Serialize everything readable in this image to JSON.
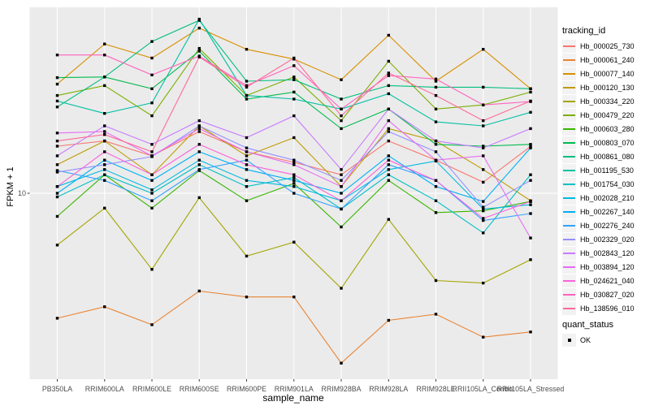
{
  "chart_data": {
    "type": "line",
    "title": "",
    "xlabel": "sample_name",
    "ylabel": "FPKM + 1",
    "y_scale": "log10",
    "y_ticks": [
      "10"
    ],
    "ylim": [
      0.8,
      138
    ],
    "grid": "ggplot-grey-panel-white-gridlines",
    "legend_position": "right",
    "point_style": {
      "shape": "square",
      "color": "#000000"
    },
    "panel_color": "#EBEBEB",
    "gridline_color": "#FFFFFF",
    "categories": [
      "PB350LA",
      "RRIM600LA",
      "RRIM600LE",
      "RRIM600SE",
      "RRIM600PE",
      "RRIM901LA",
      "RRIM928BA",
      "RRIM928LA",
      "RRIM928LE",
      "RRII105LA_Control",
      "RRII105LA_Stressed"
    ],
    "legend": {
      "title": "tracking_id"
    },
    "legend2": {
      "title": "quant_status",
      "items": [
        "OK"
      ]
    },
    "series": [
      {
        "name": "Hb_000025_730",
        "color": "#F8766D",
        "values": [
          19.5,
          21,
          17,
          24,
          18,
          15.5,
          13,
          21,
          16,
          11.7,
          19.4
        ]
      },
      {
        "name": "Hb_000061_240",
        "color": "#EA8331",
        "values": [
          1.7,
          2.0,
          1.55,
          2.5,
          2.3,
          2.3,
          0.9,
          1.65,
          1.8,
          1.3,
          1.4
        ]
      },
      {
        "name": "Hb_000077_140",
        "color": "#D89000",
        "values": [
          47,
          83,
          68,
          104,
          77,
          67,
          50,
          94,
          49,
          77,
          44
        ]
      },
      {
        "name": "Hb_000120_130",
        "color": "#C09B00",
        "values": [
          15,
          21,
          13,
          26,
          17,
          22,
          11,
          25,
          21,
          14,
          9
        ]
      },
      {
        "name": "Hb_000334_220",
        "color": "#A3A500",
        "values": [
          4.8,
          8.1,
          3.4,
          9.4,
          4.1,
          5.0,
          2.6,
          6.9,
          2.9,
          2.8,
          3.9
        ]
      },
      {
        "name": "Hb_000479_220",
        "color": "#7CAE00",
        "values": [
          40,
          46,
          30,
          78,
          40,
          52,
          28,
          65,
          33,
          35,
          42
        ]
      },
      {
        "name": "Hb_000603_280",
        "color": "#39B600",
        "values": [
          7.2,
          13,
          8.1,
          13.8,
          9,
          11.5,
          6.2,
          12,
          7.6,
          7.8,
          8.9
        ]
      },
      {
        "name": "Hb_000803_070",
        "color": "#00BB4E",
        "values": [
          51.5,
          52,
          44,
          75,
          38,
          42,
          25,
          33,
          20,
          19.5,
          20
        ]
      },
      {
        "name": "Hb_000861_080",
        "color": "#00BF7D",
        "values": [
          34,
          52,
          86,
          116,
          49,
          50,
          38,
          46,
          45,
          45,
          44
        ]
      },
      {
        "name": "Hb_001195_530",
        "color": "#00C1A3",
        "values": [
          37,
          31,
          36,
          118,
          40,
          38,
          33,
          41,
          27.5,
          26,
          31.5
        ]
      },
      {
        "name": "Hb_001754_030",
        "color": "#00BFC4",
        "values": [
          9.5,
          13,
          10,
          15,
          11,
          12.5,
          8,
          13,
          9,
          5.7,
          13
        ]
      },
      {
        "name": "Hb_002028_210",
        "color": "#00BAE0",
        "values": [
          11,
          14,
          10.5,
          16,
          12,
          11,
          9,
          14,
          15.8,
          8,
          8.5
        ]
      },
      {
        "name": "Hb_002267_140",
        "color": "#00B0F6",
        "values": [
          10,
          16,
          12,
          18,
          14,
          12,
          10,
          17,
          11,
          8.9,
          19
        ]
      },
      {
        "name": "Hb_002276_240",
        "color": "#35A2FF",
        "values": [
          13.8,
          12,
          9,
          14,
          16,
          10,
          8,
          15,
          12,
          6.8,
          7.5
        ]
      },
      {
        "name": "Hb_002329_020",
        "color": "#9590FF",
        "values": [
          13.5,
          15,
          16.8,
          26,
          19,
          16,
          12,
          24,
          18,
          8.2,
          12
        ]
      },
      {
        "name": "Hb_002843_120",
        "color": "#C77CFF",
        "values": [
          17,
          26,
          20,
          28,
          22,
          30,
          14,
          33,
          21,
          19,
          25
        ]
      },
      {
        "name": "Hb_003894_120",
        "color": "#E76BF3",
        "values": [
          23.5,
          24,
          17,
          25,
          18,
          15,
          11,
          28,
          16,
          17,
          5.3
        ]
      },
      {
        "name": "Hb_024621_040",
        "color": "#FA62DB",
        "values": [
          11,
          18,
          13,
          20,
          15,
          13,
          9,
          16,
          12,
          7,
          8.9
        ]
      },
      {
        "name": "Hb_030827_020",
        "color": "#FF62BC",
        "values": [
          71,
          71,
          53.5,
          70,
          46,
          61,
          33,
          53,
          50.5,
          35,
          36.7
        ]
      },
      {
        "name": "Hb_138596_010",
        "color": "#FF6A98",
        "values": [
          21,
          23,
          18,
          69,
          45,
          68,
          30,
          55,
          40,
          28,
          37
        ]
      }
    ]
  }
}
